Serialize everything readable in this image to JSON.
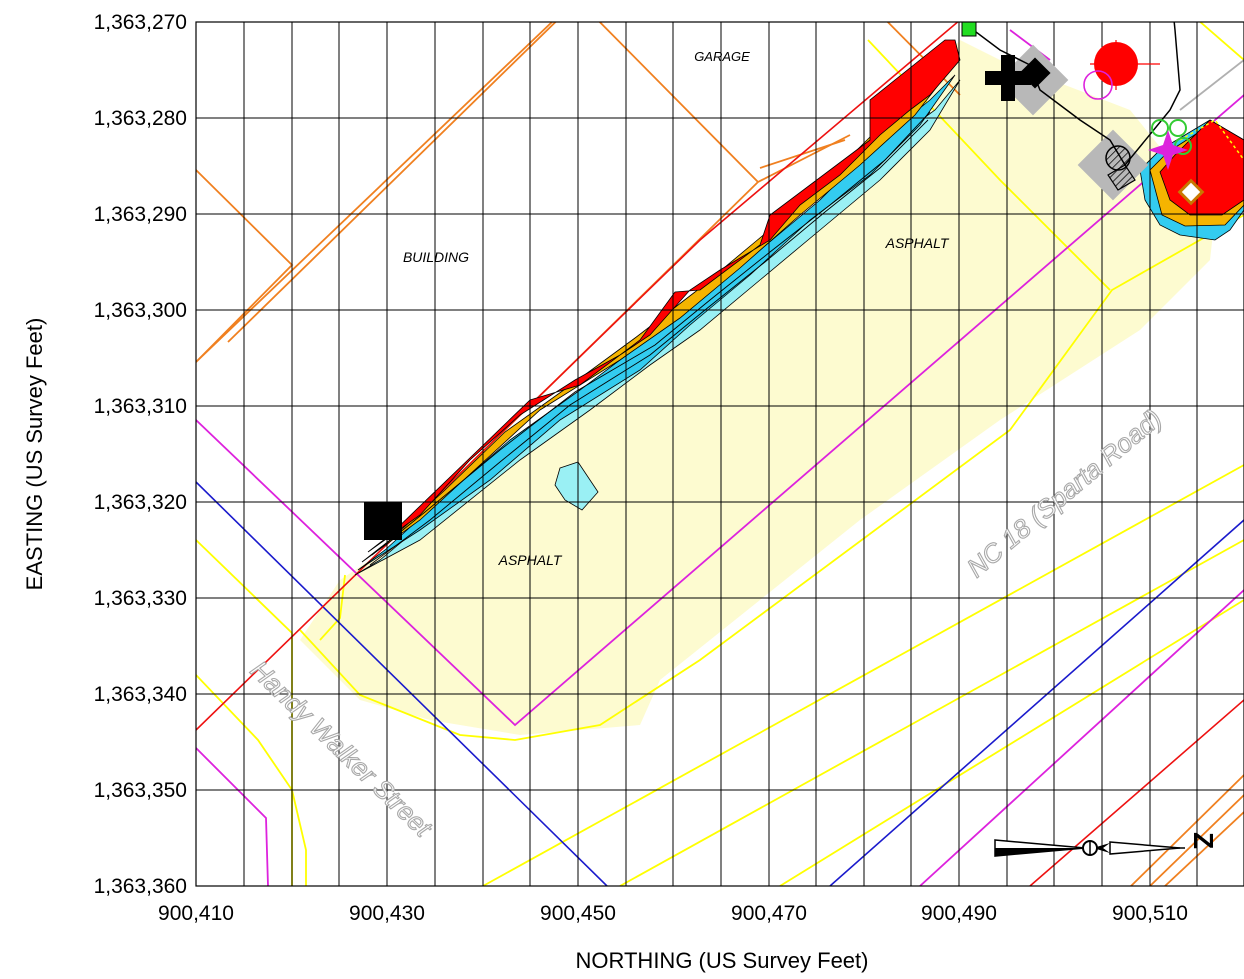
{
  "chart_data": {
    "type": "contour map",
    "xlabel": "NORTHING (US Survey Feet)",
    "ylabel": "EASTING (US Survey Feet)",
    "xlim": [
      900410,
      900520
    ],
    "ylim": [
      1363270,
      1363360
    ],
    "y_inverted": true,
    "grid": true,
    "x_ticks": [
      "900,410",
      "900,430",
      "900,450",
      "900,470",
      "900,490",
      "900,510"
    ],
    "y_ticks": [
      "1,363,270",
      "1,363,280",
      "1,363,290",
      "1,363,300",
      "1,363,310",
      "1,363,320",
      "1,363,330",
      "1,363,340",
      "1,363,350",
      "1,363,360"
    ],
    "area_labels": {
      "garage": "GARAGE",
      "building": "BUILDING",
      "asphalt_upper": "ASPHALT",
      "asphalt_lower": "ASPHALT"
    },
    "street_labels": {
      "nc18": "NC 18 (Sparta Road)",
      "handy_walker": "Handy Walker Street"
    },
    "north_arrow": "Z",
    "colors": {
      "buildings": "#f08020",
      "road_edges": "#ffff00",
      "property_lines": "#dd22dd",
      "utility_blue": "#1a1acc",
      "utility_red": "#ee1111",
      "asphalt_fill": "#fdfbd0",
      "contour_high": "#ff0000",
      "contour_mid": "#f5b400",
      "contour_low": "#33ccf0",
      "contour_light": "#9af0f4",
      "grid": "#000000"
    }
  }
}
